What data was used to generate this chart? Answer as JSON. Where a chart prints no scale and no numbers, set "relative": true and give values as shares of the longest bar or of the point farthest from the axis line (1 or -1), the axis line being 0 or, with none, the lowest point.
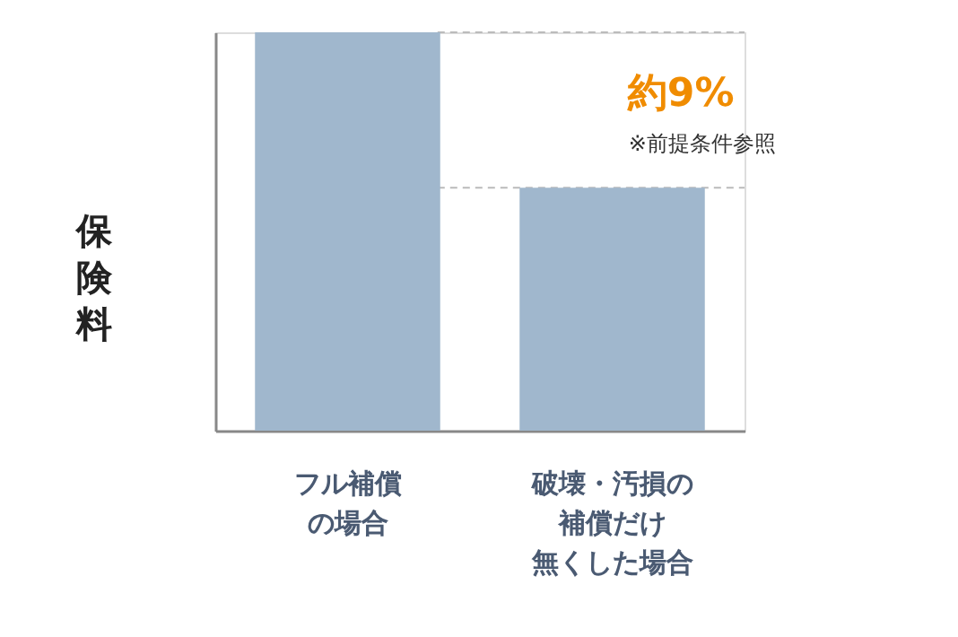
{
  "chart_data": {
    "type": "bar",
    "relative": true,
    "ylabel": "保険料",
    "categories": [
      "フル補償の場合",
      "破壊・汚損の補償だけ無くした場合"
    ],
    "values": [
      1,
      0.61
    ],
    "color": "#a0b7cd",
    "ref_lines": [
      {
        "axis": "y",
        "value": 1,
        "color": "#bbbbbb",
        "line_style": "dashed"
      },
      {
        "axis": "y",
        "value": 0.61,
        "color": "#bbbbbb",
        "line_style": "dashed"
      }
    ],
    "annotations": [
      "約9%",
      "※前提条件参照"
    ],
    "grid": false
  }
}
